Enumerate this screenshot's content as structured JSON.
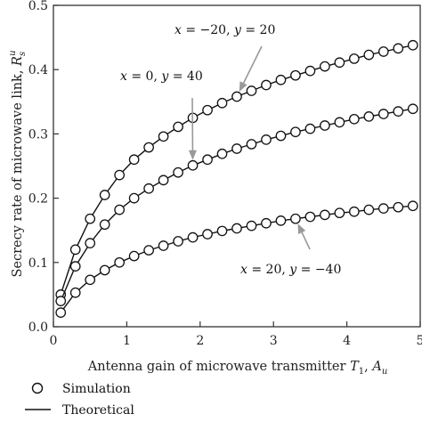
{
  "chart_data": {
    "type": "line",
    "xlabel": "Antenna gain of microwave transmitter T₁, Aᵤ",
    "ylabel": "Secrecy rate of microwave link, Rₛᵘ",
    "xlim": [
      0,
      5
    ],
    "ylim": [
      0,
      0.5
    ],
    "xticks": [
      "0",
      "1",
      "2",
      "3",
      "4",
      "5"
    ],
    "yticks": [
      "0.0",
      "0.1",
      "0.2",
      "0.3",
      "0.4",
      "0.5"
    ],
    "grid": false,
    "x": [
      0.1,
      0.3,
      0.5,
      0.7,
      0.9,
      1.1,
      1.3,
      1.5,
      1.7,
      1.9,
      2.1,
      2.3,
      2.5,
      2.7,
      2.9,
      3.1,
      3.3,
      3.5,
      3.7,
      3.9,
      4.1,
      4.3,
      4.5,
      4.7,
      4.9
    ],
    "series": [
      {
        "name": "x = −20, y = 20",
        "values": [
          0.05,
          0.12,
          0.168,
          0.205,
          0.236,
          0.26,
          0.279,
          0.296,
          0.311,
          0.325,
          0.337,
          0.348,
          0.358,
          0.367,
          0.376,
          0.384,
          0.391,
          0.398,
          0.405,
          0.411,
          0.417,
          0.423,
          0.428,
          0.433,
          0.438
        ]
      },
      {
        "name": "x = 0, y = 40",
        "values": [
          0.04,
          0.094,
          0.13,
          0.159,
          0.182,
          0.2,
          0.215,
          0.228,
          0.24,
          0.251,
          0.26,
          0.269,
          0.277,
          0.284,
          0.291,
          0.297,
          0.303,
          0.308,
          0.313,
          0.318,
          0.323,
          0.327,
          0.331,
          0.335,
          0.339
        ]
      },
      {
        "name": "x = 20, y = −40",
        "values": [
          0.022,
          0.053,
          0.073,
          0.088,
          0.1,
          0.11,
          0.119,
          0.126,
          0.133,
          0.139,
          0.144,
          0.149,
          0.153,
          0.157,
          0.161,
          0.165,
          0.168,
          0.171,
          0.174,
          0.177,
          0.179,
          0.182,
          0.184,
          0.186,
          0.188
        ]
      }
    ],
    "legend": {
      "position": "bottom-left",
      "entries": [
        {
          "label": "Simulation",
          "marker": "open-circle"
        },
        {
          "label": "Theoretical",
          "marker": "line"
        }
      ]
    },
    "annotations": [
      {
        "prefix": "x = −20, ",
        "suffix": "y = 20",
        "series": 0,
        "target_x": 2.6
      },
      {
        "prefix": "x = 0, ",
        "suffix": "y = 40",
        "series": 1,
        "target_x": 2.0
      },
      {
        "prefix": "x = 20, ",
        "suffix": "y = −40",
        "series": 2,
        "target_x": 3.4
      }
    ],
    "colors": {
      "line": "#111111",
      "marker": "#111111",
      "arrow": "#999999"
    }
  }
}
